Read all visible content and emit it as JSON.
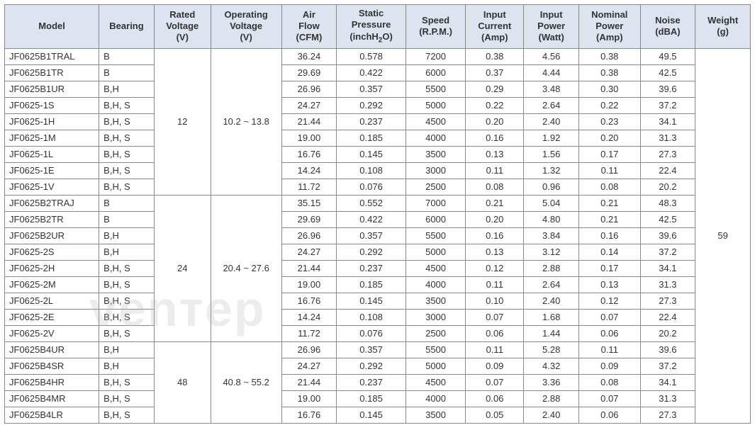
{
  "table": {
    "header_bg": "#dde3ef",
    "border_color": "#888888",
    "text_color": "#333333",
    "font_size": 13,
    "columns": [
      {
        "key": "model",
        "label": "Model"
      },
      {
        "key": "bearing",
        "label": "Bearing"
      },
      {
        "key": "rated_voltage",
        "label_l1": "Rated",
        "label_l2": "Voltage",
        "label_l3": "(V)"
      },
      {
        "key": "op_voltage",
        "label_l1": "Operating",
        "label_l2": "Voltage",
        "label_l3": "(V)"
      },
      {
        "key": "air_flow",
        "label_l1": "Air",
        "label_l2": "Flow",
        "label_l3": "(CFM)"
      },
      {
        "key": "static_pressure",
        "label_l1": "Static",
        "label_l2": "Pressure",
        "label_l3": "(inchH2O)"
      },
      {
        "key": "speed",
        "label_l1": "Speed",
        "label_l2": "(R.P.M.)"
      },
      {
        "key": "input_current",
        "label_l1": "Input",
        "label_l2": "Current",
        "label_l3": "(Amp)"
      },
      {
        "key": "input_power",
        "label_l1": "Input",
        "label_l2": "Power",
        "label_l3": "(Watt)"
      },
      {
        "key": "nominal_power",
        "label_l1": "Nominal",
        "label_l2": "Power",
        "label_l3": "(Amp)"
      },
      {
        "key": "noise",
        "label_l1": "Noise",
        "label_l2": "(dBA)"
      },
      {
        "key": "weight",
        "label_l1": "Weight",
        "label_l2": "(g)"
      }
    ],
    "groups": [
      {
        "rated_voltage": "12",
        "op_voltage": "10.2 ~ 13.8",
        "rows": [
          {
            "model": "JF0625B1TRAL",
            "bearing": "B",
            "air": "36.24",
            "static": "0.578",
            "speed": "7200",
            "icurr": "0.38",
            "ipow": "4.56",
            "npow": "0.38",
            "noise": "49.5"
          },
          {
            "model": "JF0625B1TR",
            "bearing": "B",
            "air": "29.69",
            "static": "0.422",
            "speed": "6000",
            "icurr": "0.37",
            "ipow": "4.44",
            "npow": "0.38",
            "noise": "42.5"
          },
          {
            "model": "JF0625B1UR",
            "bearing": "B,H",
            "air": "26.96",
            "static": "0.357",
            "speed": "5500",
            "icurr": "0.29",
            "ipow": "3.48",
            "npow": "0.30",
            "noise": "39.6"
          },
          {
            "model": "JF0625-1S",
            "bearing": "B,H, S",
            "air": "24.27",
            "static": "0.292",
            "speed": "5000",
            "icurr": "0.22",
            "ipow": "2.64",
            "npow": "0.22",
            "noise": "37.2"
          },
          {
            "model": "JF0625-1H",
            "bearing": "B,H, S",
            "air": "21.44",
            "static": "0.237",
            "speed": "4500",
            "icurr": "0.20",
            "ipow": "2.40",
            "npow": "0.23",
            "noise": "34.1"
          },
          {
            "model": "JF0625-1M",
            "bearing": "B,H, S",
            "air": "19.00",
            "static": "0.185",
            "speed": "4000",
            "icurr": "0.16",
            "ipow": "1.92",
            "npow": "0.20",
            "noise": "31.3"
          },
          {
            "model": "JF0625-1L",
            "bearing": "B,H, S",
            "air": "16.76",
            "static": "0.145",
            "speed": "3500",
            "icurr": "0.13",
            "ipow": "1.56",
            "npow": "0.17",
            "noise": "27.3"
          },
          {
            "model": "JF0625-1E",
            "bearing": "B,H, S",
            "air": "14.24",
            "static": "0.108",
            "speed": "3000",
            "icurr": "0.11",
            "ipow": "1.32",
            "npow": "0.11",
            "noise": "22.4"
          },
          {
            "model": "JF0625-1V",
            "bearing": "B,H, S",
            "air": "11.72",
            "static": "0.076",
            "speed": "2500",
            "icurr": "0.08",
            "ipow": "0.96",
            "npow": "0.08",
            "noise": "20.2"
          }
        ]
      },
      {
        "rated_voltage": "24",
        "op_voltage": "20.4 ~ 27.6",
        "rows": [
          {
            "model": "JF0625B2TRAJ",
            "bearing": "B",
            "air": "35.15",
            "static": "0.552",
            "speed": "7000",
            "icurr": "0.21",
            "ipow": "5.04",
            "npow": "0.21",
            "noise": "48.3"
          },
          {
            "model": "JF0625B2TR",
            "bearing": "B",
            "air": "29.69",
            "static": "0.422",
            "speed": "6000",
            "icurr": "0.20",
            "ipow": "4.80",
            "npow": "0.21",
            "noise": "42.5"
          },
          {
            "model": "JF0625B2UR",
            "bearing": "B,H",
            "air": "26.96",
            "static": "0.357",
            "speed": "5500",
            "icurr": "0.16",
            "ipow": "3.84",
            "npow": "0.16",
            "noise": "39.6"
          },
          {
            "model": "JF0625-2S",
            "bearing": "B,H",
            "air": "24.27",
            "static": "0.292",
            "speed": "5000",
            "icurr": "0.13",
            "ipow": "3.12",
            "npow": "0.14",
            "noise": "37.2"
          },
          {
            "model": "JF0625-2H",
            "bearing": "B,H, S",
            "air": "21.44",
            "static": "0.237",
            "speed": "4500",
            "icurr": "0.12",
            "ipow": "2.88",
            "npow": "0.17",
            "noise": "34.1"
          },
          {
            "model": "JF0625-2M",
            "bearing": "B,H, S",
            "air": "19.00",
            "static": "0.185",
            "speed": "4000",
            "icurr": "0.11",
            "ipow": "2.64",
            "npow": "0.13",
            "noise": "31.3"
          },
          {
            "model": "JF0625-2L",
            "bearing": "B,H, S",
            "air": "16.76",
            "static": "0.145",
            "speed": "3500",
            "icurr": "0.10",
            "ipow": "2.40",
            "npow": "0.12",
            "noise": "27.3"
          },
          {
            "model": "JF0625-2E",
            "bearing": "B,H, S",
            "air": "14.24",
            "static": "0.108",
            "speed": "3000",
            "icurr": "0.07",
            "ipow": "1.68",
            "npow": "0.07",
            "noise": "22.4"
          },
          {
            "model": "JF0625-2V",
            "bearing": "B,H, S",
            "air": "11.72",
            "static": "0.076",
            "speed": "2500",
            "icurr": "0.06",
            "ipow": "1.44",
            "npow": "0.06",
            "noise": "20.2"
          }
        ]
      },
      {
        "rated_voltage": "48",
        "op_voltage": "40.8 ~ 55.2",
        "rows": [
          {
            "model": "JF0625B4UR",
            "bearing": "B,H",
            "air": "26.96",
            "static": "0.357",
            "speed": "5500",
            "icurr": "0.11",
            "ipow": "5.28",
            "npow": "0.11",
            "noise": "39.6"
          },
          {
            "model": "JF0625B4SR",
            "bearing": "B,H",
            "air": "24.27",
            "static": "0.292",
            "speed": "5000",
            "icurr": "0.09",
            "ipow": "4.32",
            "npow": "0.09",
            "noise": "37.2"
          },
          {
            "model": "JF0625B4HR",
            "bearing": "B,H, S",
            "air": "21.44",
            "static": "0.237",
            "speed": "4500",
            "icurr": "0.07",
            "ipow": "3.36",
            "npow": "0.08",
            "noise": "34.1"
          },
          {
            "model": "JF0625B4MR",
            "bearing": "B,H, S",
            "air": "19.00",
            "static": "0.185",
            "speed": "4000",
            "icurr": "0.06",
            "ipow": "2.88",
            "npow": "0.07",
            "noise": "31.3"
          },
          {
            "model": "JF0625B4LR",
            "bearing": "B,H, S",
            "air": "16.76",
            "static": "0.145",
            "speed": "3500",
            "icurr": "0.05",
            "ipow": "2.40",
            "npow": "0.06",
            "noise": "27.3"
          }
        ]
      }
    ],
    "weight": "59",
    "watermark": "venтeр"
  }
}
